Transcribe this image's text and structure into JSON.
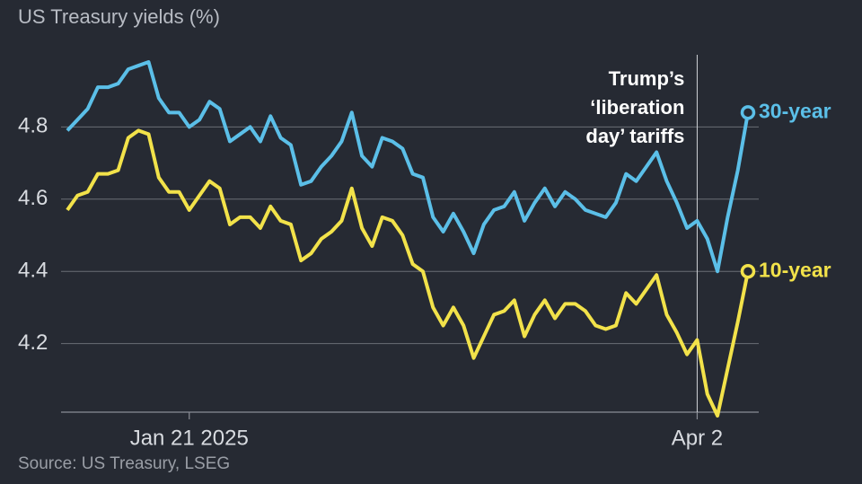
{
  "chart_data": {
    "type": "line",
    "title": "US Treasury yields (%)",
    "source": "Source: US Treasury, LSEG",
    "annotation": [
      "Trump’s",
      "‘liberation",
      "day’ tariffs"
    ],
    "categories": [
      null,
      null,
      null,
      null,
      null,
      null,
      null,
      null,
      null,
      null,
      null,
      null,
      "Jan 21 2025",
      null,
      null,
      null,
      null,
      null,
      null,
      null,
      null,
      null,
      null,
      null,
      null,
      null,
      null,
      null,
      null,
      null,
      null,
      null,
      null,
      null,
      null,
      null,
      null,
      null,
      null,
      null,
      null,
      null,
      null,
      null,
      null,
      null,
      null,
      null,
      null,
      null,
      null,
      null,
      null,
      null,
      null,
      null,
      null,
      null,
      null,
      null,
      null,
      null,
      "Apr 2",
      null,
      null,
      null,
      null,
      null
    ],
    "series": [
      {
        "name": "30-year",
        "color": "#5bbfe8",
        "values": [
          4.79,
          4.82,
          4.85,
          4.91,
          4.91,
          4.92,
          4.96,
          4.97,
          4.98,
          4.88,
          4.84,
          4.84,
          4.8,
          4.82,
          4.87,
          4.85,
          4.76,
          4.78,
          4.8,
          4.76,
          4.83,
          4.77,
          4.75,
          4.64,
          4.65,
          4.69,
          4.72,
          4.76,
          4.84,
          4.72,
          4.69,
          4.77,
          4.76,
          4.74,
          4.67,
          4.66,
          4.55,
          4.51,
          4.56,
          4.51,
          4.45,
          4.53,
          4.57,
          4.58,
          4.62,
          4.54,
          4.59,
          4.63,
          4.58,
          4.62,
          4.6,
          4.57,
          4.56,
          4.55,
          4.59,
          4.67,
          4.65,
          4.69,
          4.73,
          4.65,
          4.59,
          4.52,
          4.54,
          4.49,
          4.4,
          4.55,
          4.68,
          4.84
        ]
      },
      {
        "name": "10-year",
        "color": "#f2e24a",
        "values": [
          4.57,
          4.61,
          4.62,
          4.67,
          4.67,
          4.68,
          4.77,
          4.79,
          4.78,
          4.66,
          4.62,
          4.62,
          4.57,
          4.61,
          4.65,
          4.63,
          4.53,
          4.55,
          4.55,
          4.52,
          4.58,
          4.54,
          4.53,
          4.43,
          4.45,
          4.49,
          4.51,
          4.54,
          4.63,
          4.52,
          4.47,
          4.55,
          4.54,
          4.5,
          4.42,
          4.4,
          4.3,
          4.25,
          4.3,
          4.25,
          4.16,
          4.22,
          4.28,
          4.29,
          4.32,
          4.22,
          4.28,
          4.32,
          4.27,
          4.31,
          4.31,
          4.29,
          4.25,
          4.24,
          4.25,
          4.34,
          4.31,
          4.35,
          4.39,
          4.28,
          4.23,
          4.17,
          4.21,
          4.06,
          4.0,
          4.13,
          4.26,
          4.4
        ]
      }
    ],
    "ylim": [
      4.0,
      5.0
    ],
    "yticks": [
      4.2,
      4.4,
      4.6,
      4.8
    ],
    "grid": true
  }
}
